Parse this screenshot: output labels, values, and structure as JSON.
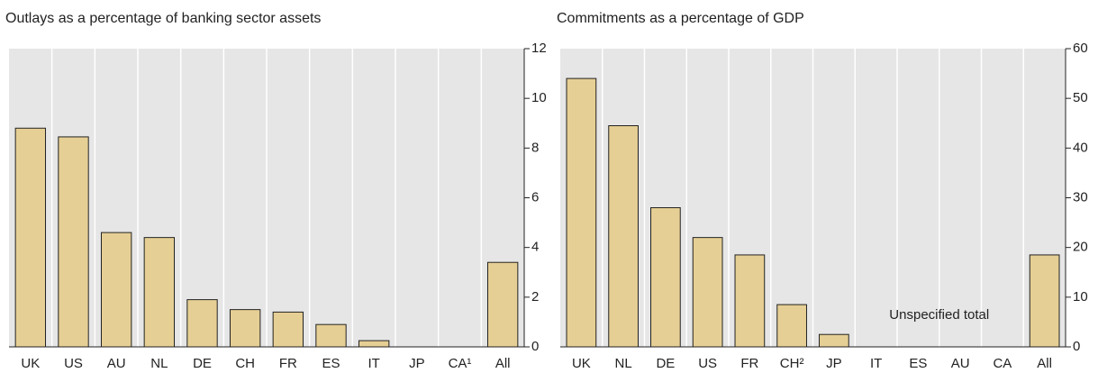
{
  "chart_data": [
    {
      "type": "bar",
      "title": "Outlays as a percentage of banking sector assets",
      "categories": [
        "UK",
        "US",
        "AU",
        "NL",
        "DE",
        "CH",
        "FR",
        "ES",
        "IT",
        "JP",
        "CA¹",
        "All"
      ],
      "values": [
        8.8,
        8.45,
        4.6,
        4.4,
        1.9,
        1.5,
        1.4,
        0.9,
        0.25,
        0,
        0,
        3.4
      ],
      "color": "#e6cf94",
      "ylim": [
        0,
        12
      ],
      "yticks": [
        0,
        2,
        4,
        6,
        8,
        10,
        12
      ]
    },
    {
      "type": "bar",
      "title": "Commitments as a percentage of GDP",
      "categories": [
        "UK",
        "NL",
        "DE",
        "US",
        "FR",
        "CH²",
        "JP",
        "IT",
        "ES",
        "AU",
        "CA",
        "All"
      ],
      "values": [
        54,
        44.5,
        28,
        22,
        18.5,
        8.5,
        2.5,
        0,
        0,
        0,
        0,
        18.5
      ],
      "color": "#e6cf94",
      "ylim": [
        0,
        60
      ],
      "yticks": [
        0,
        10,
        20,
        30,
        40,
        50,
        60
      ],
      "annotation": "Unspecified total"
    }
  ]
}
